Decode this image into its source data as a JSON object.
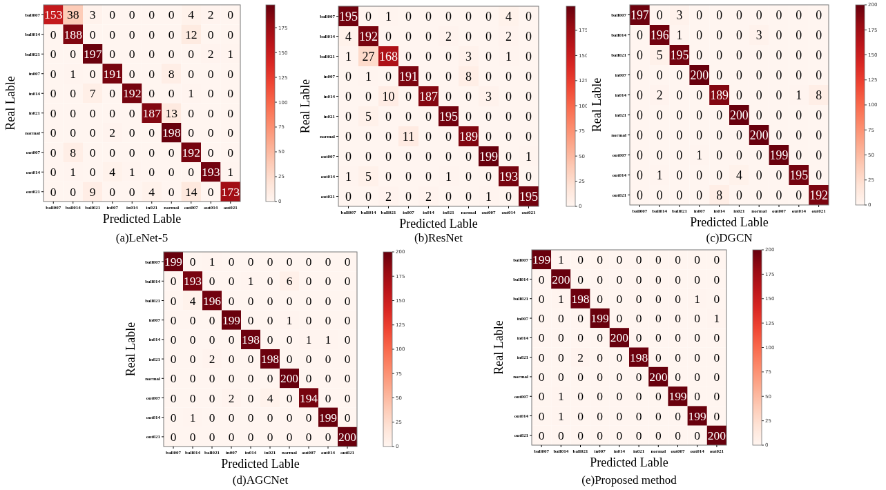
{
  "chart_data": [
    {
      "type": "heatmap",
      "title": "(a)LeNet-5",
      "xlabel": "Predicted Lable",
      "ylabel": "Real Lable",
      "categories": [
        "ball007",
        "ball014",
        "ball021",
        "in007",
        "in014",
        "in021",
        "normal",
        "out007",
        "out014",
        "out021"
      ],
      "y_categories": [
        "ball007",
        "ball014",
        "ball021",
        "in007",
        "in014",
        "in021",
        "normal",
        "out007",
        "out014",
        "out021"
      ],
      "cells": [
        [
          153,
          38,
          3,
          0,
          0,
          0,
          0,
          4,
          2,
          0
        ],
        [
          0,
          188,
          0,
          0,
          0,
          0,
          0,
          12,
          0,
          0
        ],
        [
          0,
          0,
          197,
          0,
          0,
          0,
          0,
          0,
          2,
          1
        ],
        [
          0,
          1,
          0,
          191,
          0,
          0,
          8,
          0,
          0,
          0
        ],
        [
          0,
          0,
          7,
          0,
          192,
          0,
          0,
          1,
          0,
          0
        ],
        [
          0,
          0,
          0,
          0,
          0,
          187,
          13,
          0,
          0,
          0
        ],
        [
          0,
          0,
          0,
          2,
          0,
          0,
          198,
          0,
          0,
          0
        ],
        [
          0,
          8,
          0,
          0,
          0,
          0,
          0,
          192,
          0,
          0
        ],
        [
          0,
          1,
          0,
          4,
          1,
          0,
          0,
          0,
          193,
          1
        ],
        [
          0,
          0,
          9,
          0,
          0,
          4,
          0,
          14,
          0,
          173
        ]
      ],
      "data_labels": true,
      "clim": [
        0,
        198
      ],
      "cticks": [
        0,
        25,
        50,
        75,
        100,
        125,
        150,
        175
      ]
    },
    {
      "type": "heatmap",
      "title": "(b)ResNet",
      "xlabel": "Predicted Lable",
      "ylabel": "Real Lable",
      "categories": [
        "ball007",
        "ball014",
        "ball021",
        "in007",
        "in014",
        "in021",
        "normal",
        "out007",
        "out014",
        "out021"
      ],
      "y_categories": [
        "ball007",
        "ball014",
        "ball021",
        "in007",
        "in014",
        "in021",
        "normal",
        "out007",
        "out014",
        "out021"
      ],
      "cells": [
        [
          195,
          0,
          1,
          0,
          0,
          0,
          0,
          0,
          4,
          0
        ],
        [
          4,
          192,
          0,
          0,
          0,
          2,
          0,
          0,
          2,
          0
        ],
        [
          1,
          27,
          168,
          0,
          0,
          0,
          3,
          0,
          1,
          0
        ],
        [
          0,
          1,
          0,
          191,
          0,
          0,
          8,
          0,
          0,
          0
        ],
        [
          0,
          0,
          10,
          0,
          187,
          0,
          0,
          3,
          0,
          0
        ],
        [
          0,
          5,
          0,
          0,
          0,
          195,
          0,
          0,
          0,
          0
        ],
        [
          0,
          0,
          0,
          11,
          0,
          0,
          189,
          0,
          0,
          0
        ],
        [
          0,
          0,
          0,
          0,
          0,
          0,
          0,
          199,
          0,
          1
        ],
        [
          1,
          5,
          0,
          0,
          0,
          1,
          0,
          0,
          193,
          0
        ],
        [
          0,
          0,
          2,
          0,
          2,
          0,
          0,
          1,
          0,
          195
        ]
      ],
      "data_labels": true,
      "clim": [
        0,
        199
      ],
      "cticks": [
        0,
        25,
        50,
        75,
        100,
        125,
        150,
        175
      ]
    },
    {
      "type": "heatmap",
      "title": "(c)DGCN",
      "xlabel": "Predicted Lable",
      "ylabel": "Real Lable",
      "categories": [
        "ball007",
        "ball014",
        "ball021",
        "in007",
        "in014",
        "in021",
        "normal",
        "out007",
        "out014",
        "out021"
      ],
      "y_categories": [
        "ball007",
        "ball014",
        "ball021",
        "in007",
        "in014",
        "in021",
        "normal",
        "out007",
        "out014",
        "out021"
      ],
      "cells": [
        [
          197,
          0,
          3,
          0,
          0,
          0,
          0,
          0,
          0,
          0
        ],
        [
          0,
          196,
          1,
          0,
          0,
          0,
          3,
          0,
          0,
          0
        ],
        [
          0,
          5,
          195,
          0,
          0,
          0,
          0,
          0,
          0,
          0
        ],
        [
          0,
          0,
          0,
          200,
          0,
          0,
          0,
          0,
          0,
          0
        ],
        [
          0,
          2,
          0,
          0,
          189,
          0,
          0,
          0,
          1,
          8
        ],
        [
          0,
          0,
          0,
          0,
          0,
          200,
          0,
          0,
          0,
          0
        ],
        [
          0,
          0,
          0,
          0,
          0,
          0,
          200,
          0,
          0,
          0
        ],
        [
          0,
          0,
          0,
          1,
          0,
          0,
          0,
          199,
          0,
          0
        ],
        [
          0,
          1,
          0,
          0,
          0,
          4,
          0,
          0,
          195,
          0
        ],
        [
          0,
          0,
          0,
          0,
          8,
          0,
          0,
          0,
          0,
          192
        ]
      ],
      "data_labels": true,
      "clim": [
        0,
        200
      ],
      "cticks": [
        0,
        25,
        50,
        75,
        100,
        125,
        150,
        175,
        200
      ]
    },
    {
      "type": "heatmap",
      "title": "(d)AGCNet",
      "xlabel": "Predicted Lable",
      "ylabel": "Real Lable",
      "categories": [
        "ball007",
        "ball014",
        "ball021",
        "in007",
        "in014",
        "in021",
        "normal",
        "out007",
        "out014",
        "out021"
      ],
      "y_categories": [
        "ball007",
        "ball014",
        "ball021",
        "in007",
        "in014",
        "in021",
        "normal",
        "out007",
        "out014",
        "out021"
      ],
      "cells": [
        [
          199,
          0,
          1,
          0,
          0,
          0,
          0,
          0,
          0,
          0
        ],
        [
          0,
          193,
          0,
          0,
          1,
          0,
          6,
          0,
          0,
          0
        ],
        [
          0,
          4,
          196,
          0,
          0,
          0,
          0,
          0,
          0,
          0
        ],
        [
          0,
          0,
          0,
          199,
          0,
          0,
          1,
          0,
          0,
          0
        ],
        [
          0,
          0,
          0,
          0,
          198,
          0,
          0,
          1,
          1,
          0
        ],
        [
          0,
          0,
          2,
          0,
          0,
          198,
          0,
          0,
          0,
          0
        ],
        [
          0,
          0,
          0,
          0,
          0,
          0,
          200,
          0,
          0,
          0
        ],
        [
          0,
          0,
          0,
          2,
          0,
          4,
          0,
          194,
          0,
          0
        ],
        [
          0,
          1,
          0,
          0,
          0,
          0,
          0,
          0,
          199,
          0
        ],
        [
          0,
          0,
          0,
          0,
          0,
          0,
          0,
          0,
          0,
          200
        ]
      ],
      "data_labels": true,
      "clim": [
        0,
        200
      ],
      "cticks": [
        0,
        25,
        50,
        75,
        100,
        125,
        150,
        175,
        200
      ]
    },
    {
      "type": "heatmap",
      "title": "(e)Proposed method",
      "xlabel": "Predicted Lable",
      "ylabel": "Real Lable",
      "categories": [
        "ball007",
        "ball014",
        "ball021",
        "in007",
        "in014",
        "in021",
        "normal",
        "out007",
        "out014",
        "out021"
      ],
      "y_categories": [
        "ball007",
        "ball014",
        "ball021",
        "in007",
        "in014",
        "in021",
        "normal",
        "out007",
        "out014",
        "out021"
      ],
      "cells": [
        [
          199,
          1,
          0,
          0,
          0,
          0,
          0,
          0,
          0,
          0
        ],
        [
          0,
          200,
          0,
          0,
          0,
          0,
          0,
          0,
          0,
          0
        ],
        [
          0,
          1,
          198,
          0,
          0,
          0,
          0,
          0,
          1,
          0
        ],
        [
          0,
          0,
          0,
          199,
          0,
          0,
          0,
          0,
          0,
          1
        ],
        [
          0,
          0,
          0,
          0,
          200,
          0,
          0,
          0,
          0,
          0
        ],
        [
          0,
          0,
          2,
          0,
          0,
          198,
          0,
          0,
          0,
          0
        ],
        [
          0,
          0,
          0,
          0,
          0,
          0,
          200,
          0,
          0,
          0
        ],
        [
          0,
          1,
          0,
          0,
          0,
          0,
          0,
          199,
          0,
          0
        ],
        [
          0,
          1,
          0,
          0,
          0,
          0,
          0,
          0,
          199,
          0
        ],
        [
          0,
          0,
          0,
          0,
          0,
          0,
          0,
          0,
          0,
          200
        ]
      ],
      "data_labels": true,
      "clim": [
        0,
        200
      ],
      "cticks": [
        0,
        25,
        50,
        75,
        100,
        125,
        150,
        175,
        200
      ]
    }
  ]
}
